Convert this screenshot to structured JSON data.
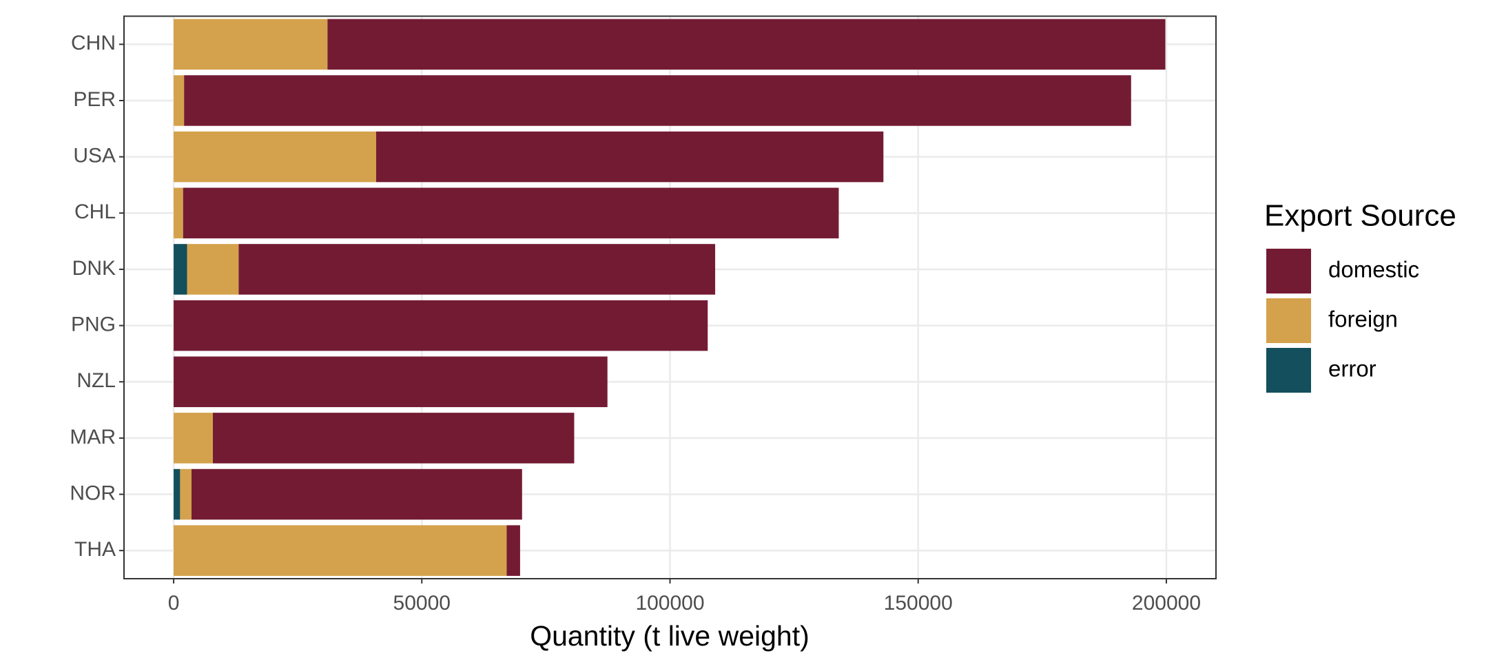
{
  "chart_data": {
    "type": "stacked-bar-horizontal",
    "x_label": "Quantity (t live weight)",
    "legend_title": "Export Source",
    "legend_position": "right",
    "grid": true,
    "categories": [
      "CHN",
      "PER",
      "USA",
      "CHL",
      "DNK",
      "PNG",
      "NZL",
      "MAR",
      "NOR",
      "THA"
    ],
    "series": [
      {
        "name": "domestic",
        "color": "#741b34",
        "values": [
          168800,
          190800,
          102200,
          132100,
          96000,
          107600,
          87400,
          72800,
          66600,
          2700
        ]
      },
      {
        "name": "foreign",
        "color": "#d4a24c",
        "values": [
          31000,
          2100,
          40800,
          1900,
          10400,
          0,
          0,
          7900,
          2300,
          67100
        ]
      },
      {
        "name": "error",
        "color": "#134f5c",
        "values": [
          0,
          0,
          0,
          0,
          2700,
          0,
          0,
          0,
          1300,
          0
        ]
      }
    ],
    "xlim": [
      -10000,
      210000
    ],
    "xticks": [
      0,
      50000,
      100000,
      150000,
      200000
    ]
  }
}
